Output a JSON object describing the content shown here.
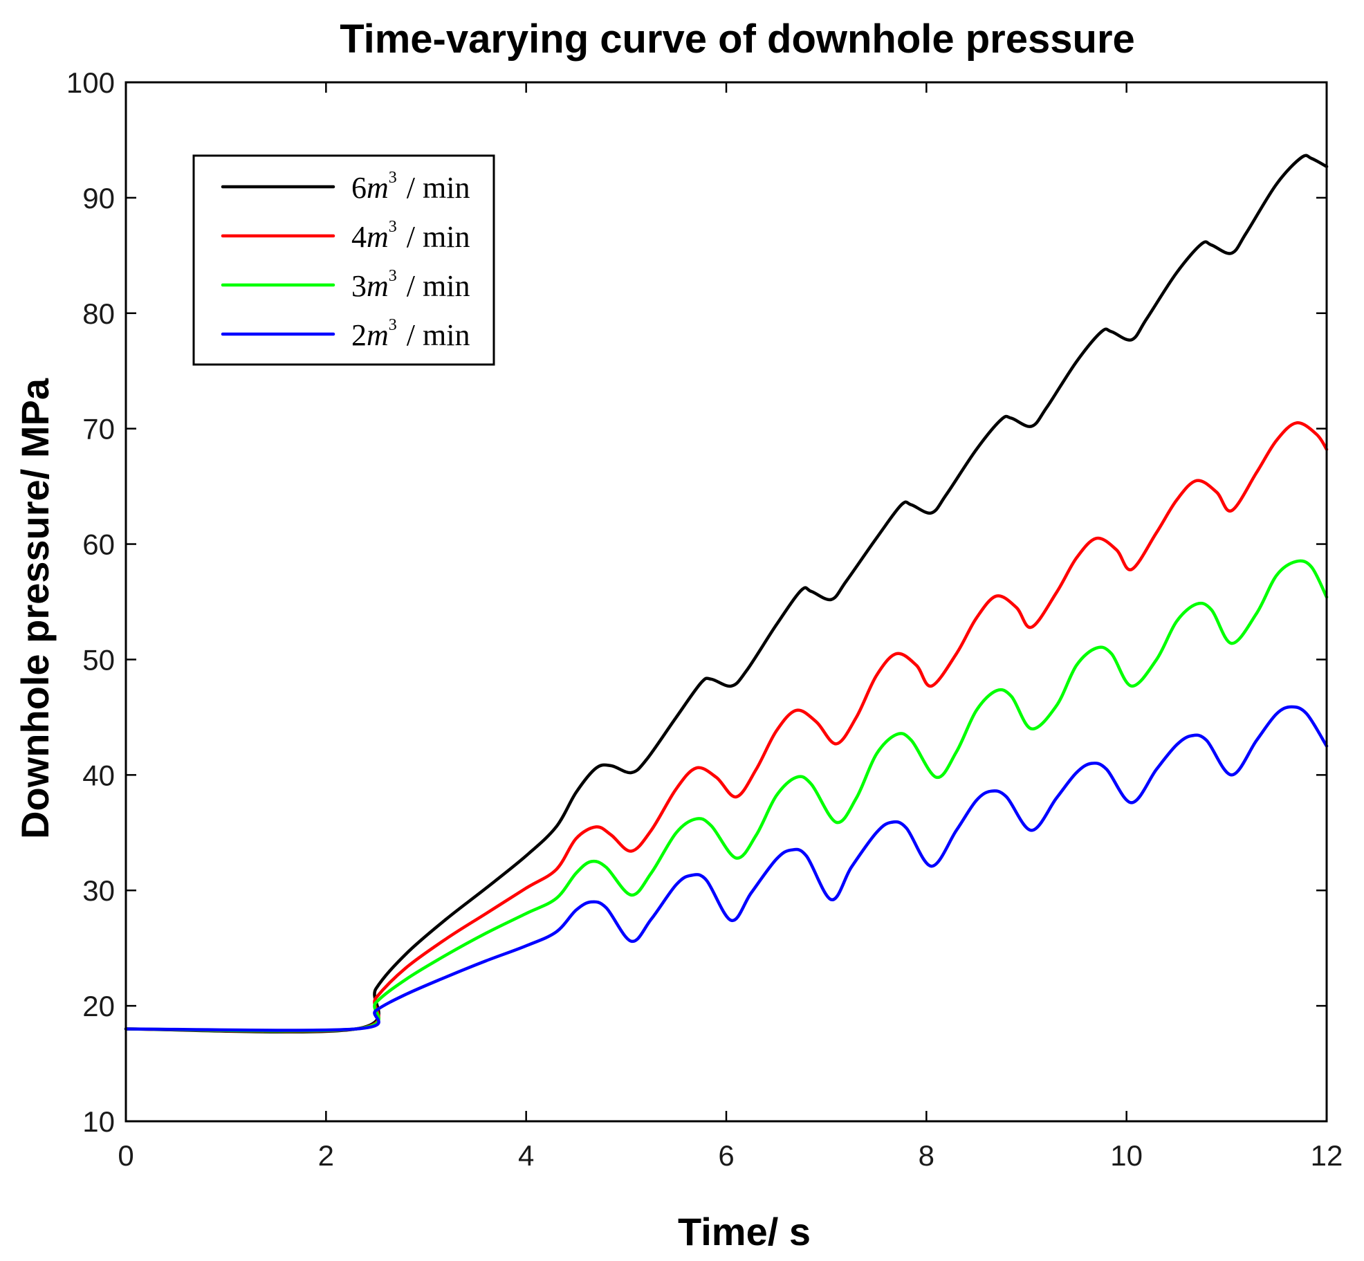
{
  "chart_data": {
    "type": "line",
    "title": "Time-varying curve of downhole pressure",
    "xlabel": "Time/ s",
    "ylabel": "Downhole pressure/ MPa",
    "xlim": [
      0,
      12
    ],
    "ylim": [
      10,
      100
    ],
    "xticks": [
      "0",
      "2",
      "4",
      "6",
      "8",
      "10",
      "12"
    ],
    "yticks": [
      "10",
      "20",
      "30",
      "40",
      "50",
      "60",
      "70",
      "80",
      "90",
      "100"
    ],
    "grid": false,
    "legend_position": "top-left",
    "series": [
      {
        "name": "6m3 / min",
        "legend": {
          "coef": "6",
          "var": "m",
          "exp": "3",
          "unit": "/ min"
        },
        "color": "#000000",
        "points": [
          [
            0,
            18
          ],
          [
            2.3,
            18
          ],
          [
            2.5,
            21.5
          ],
          [
            2.8,
            24.5
          ],
          [
            3.2,
            27.5
          ],
          [
            3.6,
            30.2
          ],
          [
            4.0,
            33
          ],
          [
            4.3,
            35.5
          ],
          [
            4.5,
            38.5
          ],
          [
            4.7,
            40.6
          ],
          [
            4.85,
            40.8
          ],
          [
            5.05,
            40.2
          ],
          [
            5.2,
            41.3
          ],
          [
            5.5,
            45
          ],
          [
            5.75,
            48
          ],
          [
            5.85,
            48.3
          ],
          [
            6.05,
            47.7
          ],
          [
            6.2,
            49
          ],
          [
            6.5,
            53
          ],
          [
            6.75,
            56
          ],
          [
            6.85,
            55.9
          ],
          [
            7.05,
            55.2
          ],
          [
            7.2,
            56.8
          ],
          [
            7.5,
            60.5
          ],
          [
            7.75,
            63.4
          ],
          [
            7.85,
            63.4
          ],
          [
            8.05,
            62.7
          ],
          [
            8.2,
            64.3
          ],
          [
            8.5,
            68.2
          ],
          [
            8.75,
            70.8
          ],
          [
            8.85,
            70.9
          ],
          [
            9.05,
            70.2
          ],
          [
            9.2,
            71.8
          ],
          [
            9.5,
            75.8
          ],
          [
            9.75,
            78.4
          ],
          [
            9.85,
            78.4
          ],
          [
            10.05,
            77.7
          ],
          [
            10.2,
            79.5
          ],
          [
            10.5,
            83.5
          ],
          [
            10.75,
            86
          ],
          [
            10.85,
            85.9
          ],
          [
            11.05,
            85.2
          ],
          [
            11.2,
            87
          ],
          [
            11.5,
            91.2
          ],
          [
            11.75,
            93.5
          ],
          [
            11.85,
            93.4
          ],
          [
            12,
            92.7
          ]
        ]
      },
      {
        "name": "4m3 / min",
        "legend": {
          "coef": "4",
          "var": "m",
          "exp": "3",
          "unit": "/ min"
        },
        "color": "#ff0000",
        "points": [
          [
            0,
            18
          ],
          [
            2.3,
            18
          ],
          [
            2.5,
            20.7
          ],
          [
            2.8,
            23.3
          ],
          [
            3.2,
            25.8
          ],
          [
            3.6,
            28
          ],
          [
            4.0,
            30.2
          ],
          [
            4.3,
            31.8
          ],
          [
            4.5,
            34.5
          ],
          [
            4.7,
            35.5
          ],
          [
            4.85,
            34.8
          ],
          [
            5.05,
            33.4
          ],
          [
            5.25,
            35.2
          ],
          [
            5.5,
            38.8
          ],
          [
            5.7,
            40.6
          ],
          [
            5.9,
            39.8
          ],
          [
            6.1,
            38.1
          ],
          [
            6.3,
            40.5
          ],
          [
            6.5,
            43.8
          ],
          [
            6.7,
            45.6
          ],
          [
            6.9,
            44.6
          ],
          [
            7.1,
            42.7
          ],
          [
            7.3,
            45
          ],
          [
            7.5,
            48.6
          ],
          [
            7.7,
            50.5
          ],
          [
            7.9,
            49.5
          ],
          [
            8.05,
            47.7
          ],
          [
            8.3,
            50.5
          ],
          [
            8.5,
            53.6
          ],
          [
            8.7,
            55.5
          ],
          [
            8.9,
            54.5
          ],
          [
            9.05,
            52.8
          ],
          [
            9.3,
            55.8
          ],
          [
            9.5,
            58.8
          ],
          [
            9.7,
            60.5
          ],
          [
            9.9,
            59.5
          ],
          [
            10.05,
            57.8
          ],
          [
            10.3,
            61
          ],
          [
            10.5,
            63.8
          ],
          [
            10.7,
            65.5
          ],
          [
            10.9,
            64.5
          ],
          [
            11.05,
            62.9
          ],
          [
            11.3,
            66.2
          ],
          [
            11.5,
            69
          ],
          [
            11.7,
            70.5
          ],
          [
            11.9,
            69.5
          ],
          [
            12,
            68.2
          ]
        ]
      },
      {
        "name": "3m3 / min",
        "legend": {
          "coef": "3",
          "var": "m",
          "exp": "3",
          "unit": "/ min"
        },
        "color": "#00ff00",
        "points": [
          [
            0,
            18
          ],
          [
            2.3,
            18
          ],
          [
            2.5,
            20.3
          ],
          [
            2.8,
            22.3
          ],
          [
            3.2,
            24.4
          ],
          [
            3.6,
            26.3
          ],
          [
            4.0,
            28
          ],
          [
            4.3,
            29.3
          ],
          [
            4.5,
            31.5
          ],
          [
            4.65,
            32.5
          ],
          [
            4.8,
            32
          ],
          [
            5.05,
            29.6
          ],
          [
            5.25,
            31.5
          ],
          [
            5.5,
            35
          ],
          [
            5.7,
            36.2
          ],
          [
            5.85,
            35.6
          ],
          [
            6.1,
            32.8
          ],
          [
            6.3,
            34.8
          ],
          [
            6.5,
            38.2
          ],
          [
            6.7,
            39.8
          ],
          [
            6.85,
            39.2
          ],
          [
            7.1,
            35.9
          ],
          [
            7.3,
            38
          ],
          [
            7.5,
            41.8
          ],
          [
            7.7,
            43.5
          ],
          [
            7.85,
            43
          ],
          [
            8.1,
            39.8
          ],
          [
            8.3,
            42
          ],
          [
            8.5,
            45.6
          ],
          [
            8.7,
            47.3
          ],
          [
            8.85,
            46.8
          ],
          [
            9.05,
            44
          ],
          [
            9.3,
            46
          ],
          [
            9.5,
            49.5
          ],
          [
            9.7,
            51
          ],
          [
            9.85,
            50.5
          ],
          [
            10.05,
            47.7
          ],
          [
            10.3,
            50
          ],
          [
            10.5,
            53.3
          ],
          [
            10.7,
            54.8
          ],
          [
            10.85,
            54.3
          ],
          [
            11.05,
            51.4
          ],
          [
            11.3,
            54
          ],
          [
            11.5,
            57.3
          ],
          [
            11.7,
            58.5
          ],
          [
            11.85,
            58
          ],
          [
            12,
            55.4
          ]
        ]
      },
      {
        "name": "2m3 / min",
        "legend": {
          "coef": "2",
          "var": "m",
          "exp": "3",
          "unit": "/ min"
        },
        "color": "#0000ff",
        "points": [
          [
            0,
            18
          ],
          [
            2.3,
            18
          ],
          [
            2.5,
            19.6
          ],
          [
            2.8,
            21
          ],
          [
            3.2,
            22.5
          ],
          [
            3.6,
            23.9
          ],
          [
            4.0,
            25.2
          ],
          [
            4.3,
            26.4
          ],
          [
            4.5,
            28.3
          ],
          [
            4.65,
            29
          ],
          [
            4.8,
            28.5
          ],
          [
            5.05,
            25.6
          ],
          [
            5.25,
            27.5
          ],
          [
            5.5,
            30.5
          ],
          [
            5.65,
            31.3
          ],
          [
            5.8,
            30.9
          ],
          [
            6.05,
            27.4
          ],
          [
            6.25,
            29.8
          ],
          [
            6.5,
            32.7
          ],
          [
            6.65,
            33.5
          ],
          [
            6.8,
            33
          ],
          [
            7.05,
            29.2
          ],
          [
            7.25,
            32
          ],
          [
            7.5,
            35
          ],
          [
            7.65,
            35.9
          ],
          [
            7.8,
            35.4
          ],
          [
            8.05,
            32.1
          ],
          [
            8.3,
            35.2
          ],
          [
            8.5,
            37.8
          ],
          [
            8.65,
            38.6
          ],
          [
            8.8,
            38.1
          ],
          [
            9.05,
            35.2
          ],
          [
            9.3,
            38
          ],
          [
            9.5,
            40.2
          ],
          [
            9.65,
            41
          ],
          [
            9.8,
            40.5
          ],
          [
            10.05,
            37.6
          ],
          [
            10.3,
            40.5
          ],
          [
            10.5,
            42.6
          ],
          [
            10.65,
            43.4
          ],
          [
            10.8,
            43
          ],
          [
            11.05,
            40
          ],
          [
            11.3,
            43
          ],
          [
            11.5,
            45.3
          ],
          [
            11.65,
            45.9
          ],
          [
            11.8,
            45.3
          ],
          [
            12,
            42.5
          ]
        ]
      }
    ]
  }
}
